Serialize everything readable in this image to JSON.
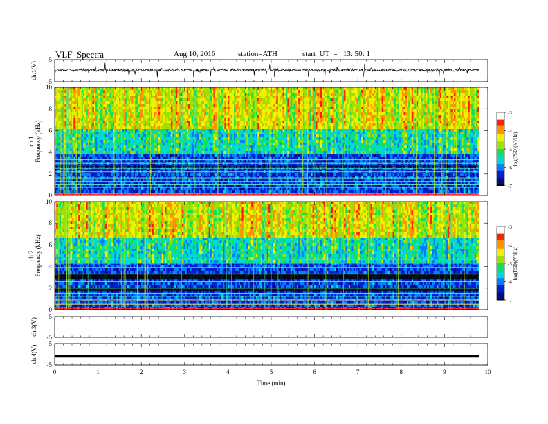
{
  "header": {
    "title": "VLF  Spectra",
    "date": "Aug.10, 2016",
    "station": "station=ATH",
    "start": "start  UT  =   13: 50: 1"
  },
  "chart_data": [
    {
      "type": "line",
      "panel": "ch1-waveform",
      "ylabel": "ch.1(V)",
      "ylim": [
        -5,
        5
      ],
      "yticks": [
        "5",
        "-5"
      ],
      "xlim": [
        0,
        10
      ],
      "baseline": 0.3,
      "x_end": 9.8,
      "color": "#000000"
    },
    {
      "type": "heatmap",
      "panel": "ch1-spectrogram",
      "ylabel": "ch.1\nFrequency  (kHz)",
      "ylim": [
        0,
        10
      ],
      "yticks": [
        "0",
        "2",
        "4",
        "6",
        "8",
        "10"
      ],
      "xlim": [
        0,
        10
      ],
      "x_end": 9.8,
      "strong_band_khz": [
        4.0,
        6.2
      ],
      "lines_khz": [
        0.2,
        0.7,
        1.0,
        1.3,
        1.6,
        2.2,
        2.5,
        3.0,
        3.3
      ],
      "colorbar": {
        "label": "log(PSD)(V²/Hz)",
        "range": [
          -7,
          -3
        ],
        "ticks": [
          "-3",
          "-4",
          "-5",
          "-6",
          "-7"
        ]
      }
    },
    {
      "type": "heatmap",
      "panel": "ch2-spectrogram",
      "ylabel": "ch.2\nFrequency  (kHz)",
      "ylim": [
        0,
        10
      ],
      "yticks": [
        "0",
        "2",
        "4",
        "6",
        "8",
        "10"
      ],
      "xlim": [
        0,
        10
      ],
      "x_end": 9.8,
      "strong_band_khz": [
        4.6,
        6.8
      ],
      "lines_khz": [
        0.5,
        0.9,
        1.2,
        1.5,
        2.0,
        2.6,
        3.3,
        3.9,
        4.3,
        4.6
      ],
      "colorbar": {
        "label": "log(PSD)(V²/Hz)",
        "range": [
          -7,
          -3
        ],
        "ticks": [
          "-3",
          "-4",
          "-5",
          "-6",
          "-7"
        ]
      }
    },
    {
      "type": "line",
      "panel": "ch3-waveform",
      "ylabel": "ch.3(V)",
      "ylim": [
        -5,
        5
      ],
      "yticks": [
        "5",
        "-5"
      ],
      "xlim": [
        0,
        10
      ],
      "baseline": -1.5,
      "x_end": 9.8
    },
    {
      "type": "line",
      "panel": "ch4-waveform",
      "ylabel": "ch.4(V)",
      "ylim": [
        -5,
        5
      ],
      "yticks": [
        "5",
        "-5"
      ],
      "xlim": [
        0,
        10
      ],
      "baseline": -0.9,
      "x_end": 9.8
    }
  ],
  "xaxis": {
    "label": "Time  (min)",
    "ticks": [
      "0",
      "1",
      "2",
      "3",
      "4",
      "5",
      "6",
      "7",
      "8",
      "9",
      "10"
    ]
  },
  "colormap": [
    "#000000",
    "#0a0a80",
    "#0020d0",
    "#0080ff",
    "#00d8d0",
    "#10e060",
    "#a0e000",
    "#f0f000",
    "#ff9000",
    "#ff2000",
    "#ffffff"
  ]
}
